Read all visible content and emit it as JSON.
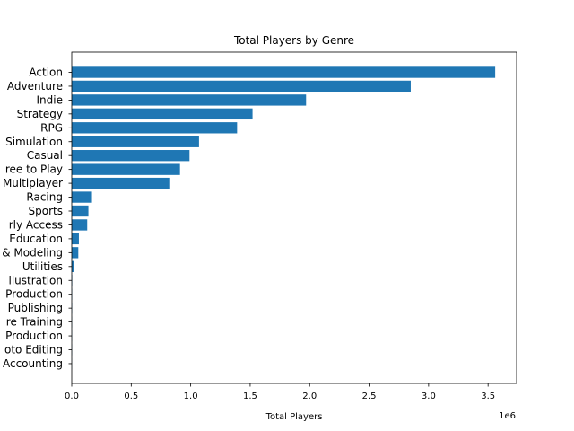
{
  "chart_data": {
    "type": "bar",
    "orientation": "horizontal",
    "title": "Total Players by Genre",
    "xlabel": "Total Players",
    "ylabel": "",
    "x_offset_label": "1e6",
    "xlim": [
      0,
      3.74
    ],
    "x_ticks": [
      0,
      0.5,
      1.0,
      1.5,
      2.0,
      2.5,
      3.0,
      3.5
    ],
    "x_tick_labels": [
      "0.0",
      "0.5",
      "1.0",
      "1.5",
      "2.0",
      "2.5",
      "3.0",
      "3.5"
    ],
    "x_scale_multiplier": 1000000,
    "grid": false,
    "bar_color": "#1f77b4",
    "categories": [
      "Action",
      "Adventure",
      "Indie",
      "Strategy",
      "RPG",
      "Simulation",
      "Casual",
      "Free to Play",
      "Multiplayer",
      "Racing",
      "Sports",
      "Early Access",
      "Education",
      "Design & Modeling",
      "Utilities",
      "Design & Illustration",
      "Audio Production",
      "Web Publishing",
      "Software Training",
      "Video Production",
      "Photo Editing",
      "Accounting"
    ],
    "visible_tick_labels": [
      "Action",
      "Adventure",
      "Indie",
      "Strategy",
      "RPG",
      "Simulation",
      "Casual",
      "ree to Play",
      "Multiplayer",
      "Racing",
      "Sports",
      "rly Access",
      "Education",
      "& Modeling",
      "Utilities",
      "llustration",
      "Production",
      "Publishing",
      "re Training",
      "Production",
      "oto Editing",
      "Accounting"
    ],
    "values": [
      3.56,
      2.85,
      1.97,
      1.52,
      1.39,
      1.07,
      0.99,
      0.91,
      0.82,
      0.17,
      0.14,
      0.13,
      0.06,
      0.055,
      0.015,
      0.004,
      0.003,
      0.003,
      0.002,
      0.002,
      0.002,
      0.001
    ]
  }
}
